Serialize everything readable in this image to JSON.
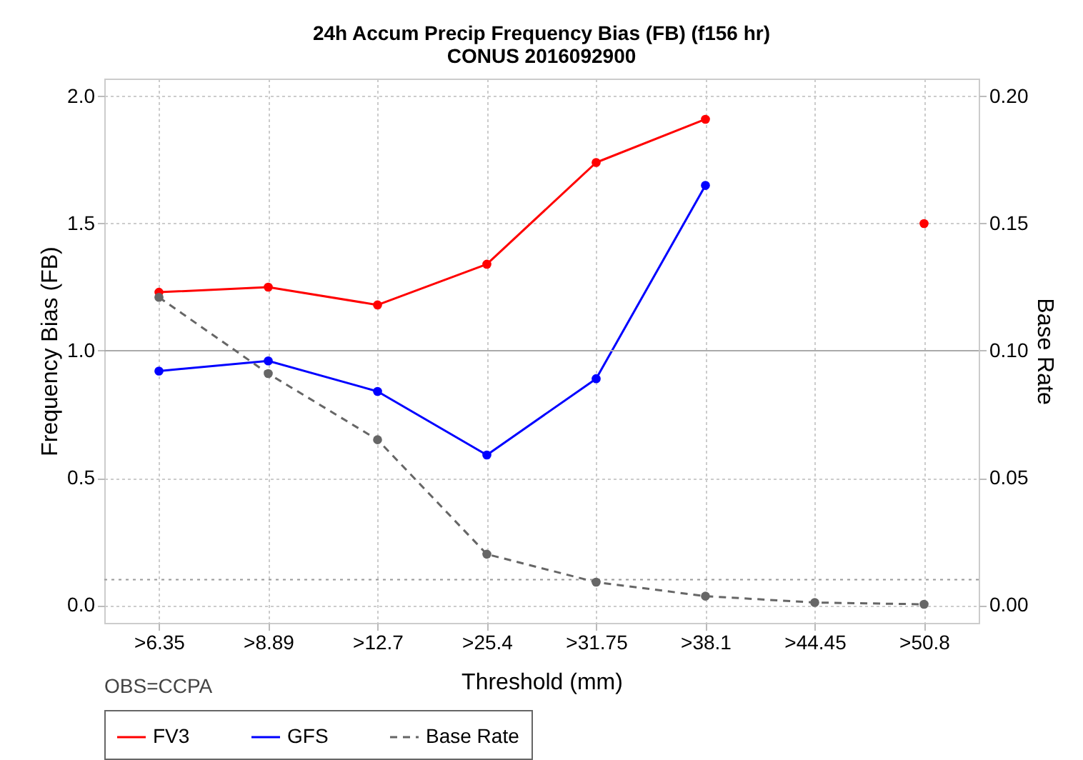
{
  "chart_data": {
    "type": "line",
    "title": "24h Accum Precip Frequency Bias (FB) (f156 hr)",
    "subtitle": "CONUS 2016092900",
    "xlabel": "Threshold (mm)",
    "ylabel": "Frequency Bias (FB)",
    "y2label": "Base Rate",
    "categories": [
      ">6.35",
      ">8.89",
      ">12.7",
      ">25.4",
      ">31.75",
      ">38.1",
      ">44.45",
      ">50.8"
    ],
    "series": [
      {
        "name": "FV3",
        "color": "#ff0000",
        "values": [
          1.23,
          1.25,
          1.18,
          1.34,
          1.74,
          1.91,
          null,
          1.5
        ]
      },
      {
        "name": "GFS",
        "color": "#0000ff",
        "values": [
          0.92,
          0.96,
          0.84,
          0.59,
          0.89,
          1.65,
          null,
          null
        ]
      },
      {
        "name": "Base Rate",
        "color": "#666666",
        "axis": "y2",
        "line_style": "dashed",
        "values": [
          0.121,
          0.091,
          0.065,
          0.02,
          0.009,
          0.0035,
          0.001,
          0.0003
        ]
      }
    ],
    "ylim": [
      -0.07,
      2.07
    ],
    "yticks": [
      {
        "value": 0,
        "label": "0.0"
      },
      0.5,
      {
        "value": 1,
        "label": "1.0"
      },
      1.5,
      {
        "value": 2,
        "label": "2.0"
      }
    ],
    "y2lim": [
      -0.007,
      0.207
    ],
    "y2ticks": [
      {
        "value": 0,
        "label": "0.00"
      },
      0.05,
      {
        "value": 0.1,
        "label": "0.10"
      },
      0.15,
      {
        "value": 0.2,
        "label": "0.20"
      }
    ],
    "ref_lines": [
      {
        "axis": "y",
        "value": 1,
        "color": "#aaaaaa",
        "line_style": "solid"
      },
      {
        "axis": "y",
        "value": 0.1,
        "color": "#999999",
        "line_style": "dotted"
      }
    ],
    "annotations": [
      "OBS=CCPA"
    ],
    "grid": true,
    "legend": "bottom",
    "marker": "circle",
    "line_style": "solid"
  }
}
